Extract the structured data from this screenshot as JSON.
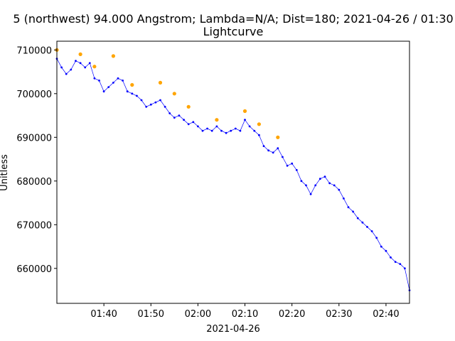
{
  "chart_data": {
    "type": "line",
    "title_line1": "5 (northwest) 94.000 Angstrom; Lambda=N/A; Dist=180; 2021-04-26 / 01:30",
    "title_line2": "Lightcurve",
    "xlabel": "2021-04-26",
    "ylabel": "Unitless",
    "xlim": [
      "01:30",
      "02:45"
    ],
    "ylim": [
      652000,
      712000
    ],
    "x_ticks": [
      "01:40",
      "01:50",
      "02:00",
      "02:10",
      "02:20",
      "02:30",
      "02:40"
    ],
    "y_ticks": [
      660000,
      670000,
      680000,
      690000,
      700000,
      710000
    ],
    "grid": false,
    "series": [
      {
        "color": "#0000ff",
        "points": [
          [
            "01:30",
            708000
          ],
          [
            "01:31",
            706000
          ],
          [
            "01:32",
            704500
          ],
          [
            "01:33",
            705500
          ],
          [
            "01:34",
            707500
          ],
          [
            "01:35",
            707000
          ],
          [
            "01:36",
            706000
          ],
          [
            "01:37",
            707000
          ],
          [
            "01:38",
            703500
          ],
          [
            "01:39",
            703000
          ],
          [
            "01:40",
            700500
          ],
          [
            "01:41",
            701500
          ],
          [
            "01:42",
            702500
          ],
          [
            "01:43",
            703500
          ],
          [
            "01:44",
            703000
          ],
          [
            "01:45",
            700500
          ],
          [
            "01:46",
            700000
          ],
          [
            "01:47",
            699500
          ],
          [
            "01:48",
            698500
          ],
          [
            "01:49",
            697000
          ],
          [
            "01:50",
            697500
          ],
          [
            "01:51",
            698000
          ],
          [
            "01:52",
            698500
          ],
          [
            "01:53",
            697000
          ],
          [
            "01:54",
            695500
          ],
          [
            "01:55",
            694500
          ],
          [
            "01:56",
            695000
          ],
          [
            "01:57",
            694000
          ],
          [
            "01:58",
            693000
          ],
          [
            "01:59",
            693500
          ],
          [
            "02:00",
            692500
          ],
          [
            "02:01",
            691500
          ],
          [
            "02:02",
            692000
          ],
          [
            "02:03",
            691500
          ],
          [
            "02:04",
            692500
          ],
          [
            "02:05",
            691500
          ],
          [
            "02:06",
            691000
          ],
          [
            "02:07",
            691500
          ],
          [
            "02:08",
            692000
          ],
          [
            "02:09",
            691500
          ],
          [
            "02:10",
            694000
          ],
          [
            "02:11",
            692500
          ],
          [
            "02:12",
            691500
          ],
          [
            "02:13",
            690500
          ],
          [
            "02:14",
            688000
          ],
          [
            "02:15",
            687000
          ],
          [
            "02:16",
            686500
          ],
          [
            "02:17",
            687500
          ],
          [
            "02:18",
            685500
          ],
          [
            "02:19",
            683500
          ],
          [
            "02:20",
            684000
          ],
          [
            "02:21",
            682500
          ],
          [
            "02:22",
            680000
          ],
          [
            "02:23",
            679000
          ],
          [
            "02:24",
            677000
          ],
          [
            "02:25",
            679000
          ],
          [
            "02:26",
            680500
          ],
          [
            "02:27",
            681000
          ],
          [
            "02:28",
            679500
          ],
          [
            "02:29",
            679000
          ],
          [
            "02:30",
            678000
          ],
          [
            "02:31",
            676000
          ],
          [
            "02:32",
            674000
          ],
          [
            "02:33",
            673000
          ],
          [
            "02:34",
            671500
          ],
          [
            "02:35",
            670500
          ],
          [
            "02:36",
            669500
          ],
          [
            "02:37",
            668500
          ],
          [
            "02:38",
            667000
          ],
          [
            "02:39",
            665000
          ],
          [
            "02:40",
            664000
          ],
          [
            "02:41",
            662500
          ],
          [
            "02:42",
            661500
          ],
          [
            "02:43",
            661000
          ],
          [
            "02:44",
            660000
          ],
          [
            "02:45",
            655000
          ]
        ]
      }
    ],
    "peaks": {
      "color": "#ffa500",
      "points": [
        [
          "01:30",
          710000
        ],
        [
          "01:35",
          709000
        ],
        [
          "01:38",
          706200
        ],
        [
          "01:42",
          708600
        ],
        [
          "01:46",
          702000
        ],
        [
          "01:52",
          702500
        ],
        [
          "01:55",
          700000
        ],
        [
          "01:58",
          697000
        ],
        [
          "02:04",
          694000
        ],
        [
          "02:10",
          696000
        ],
        [
          "02:13",
          693000
        ],
        [
          "02:17",
          690000
        ]
      ]
    }
  }
}
